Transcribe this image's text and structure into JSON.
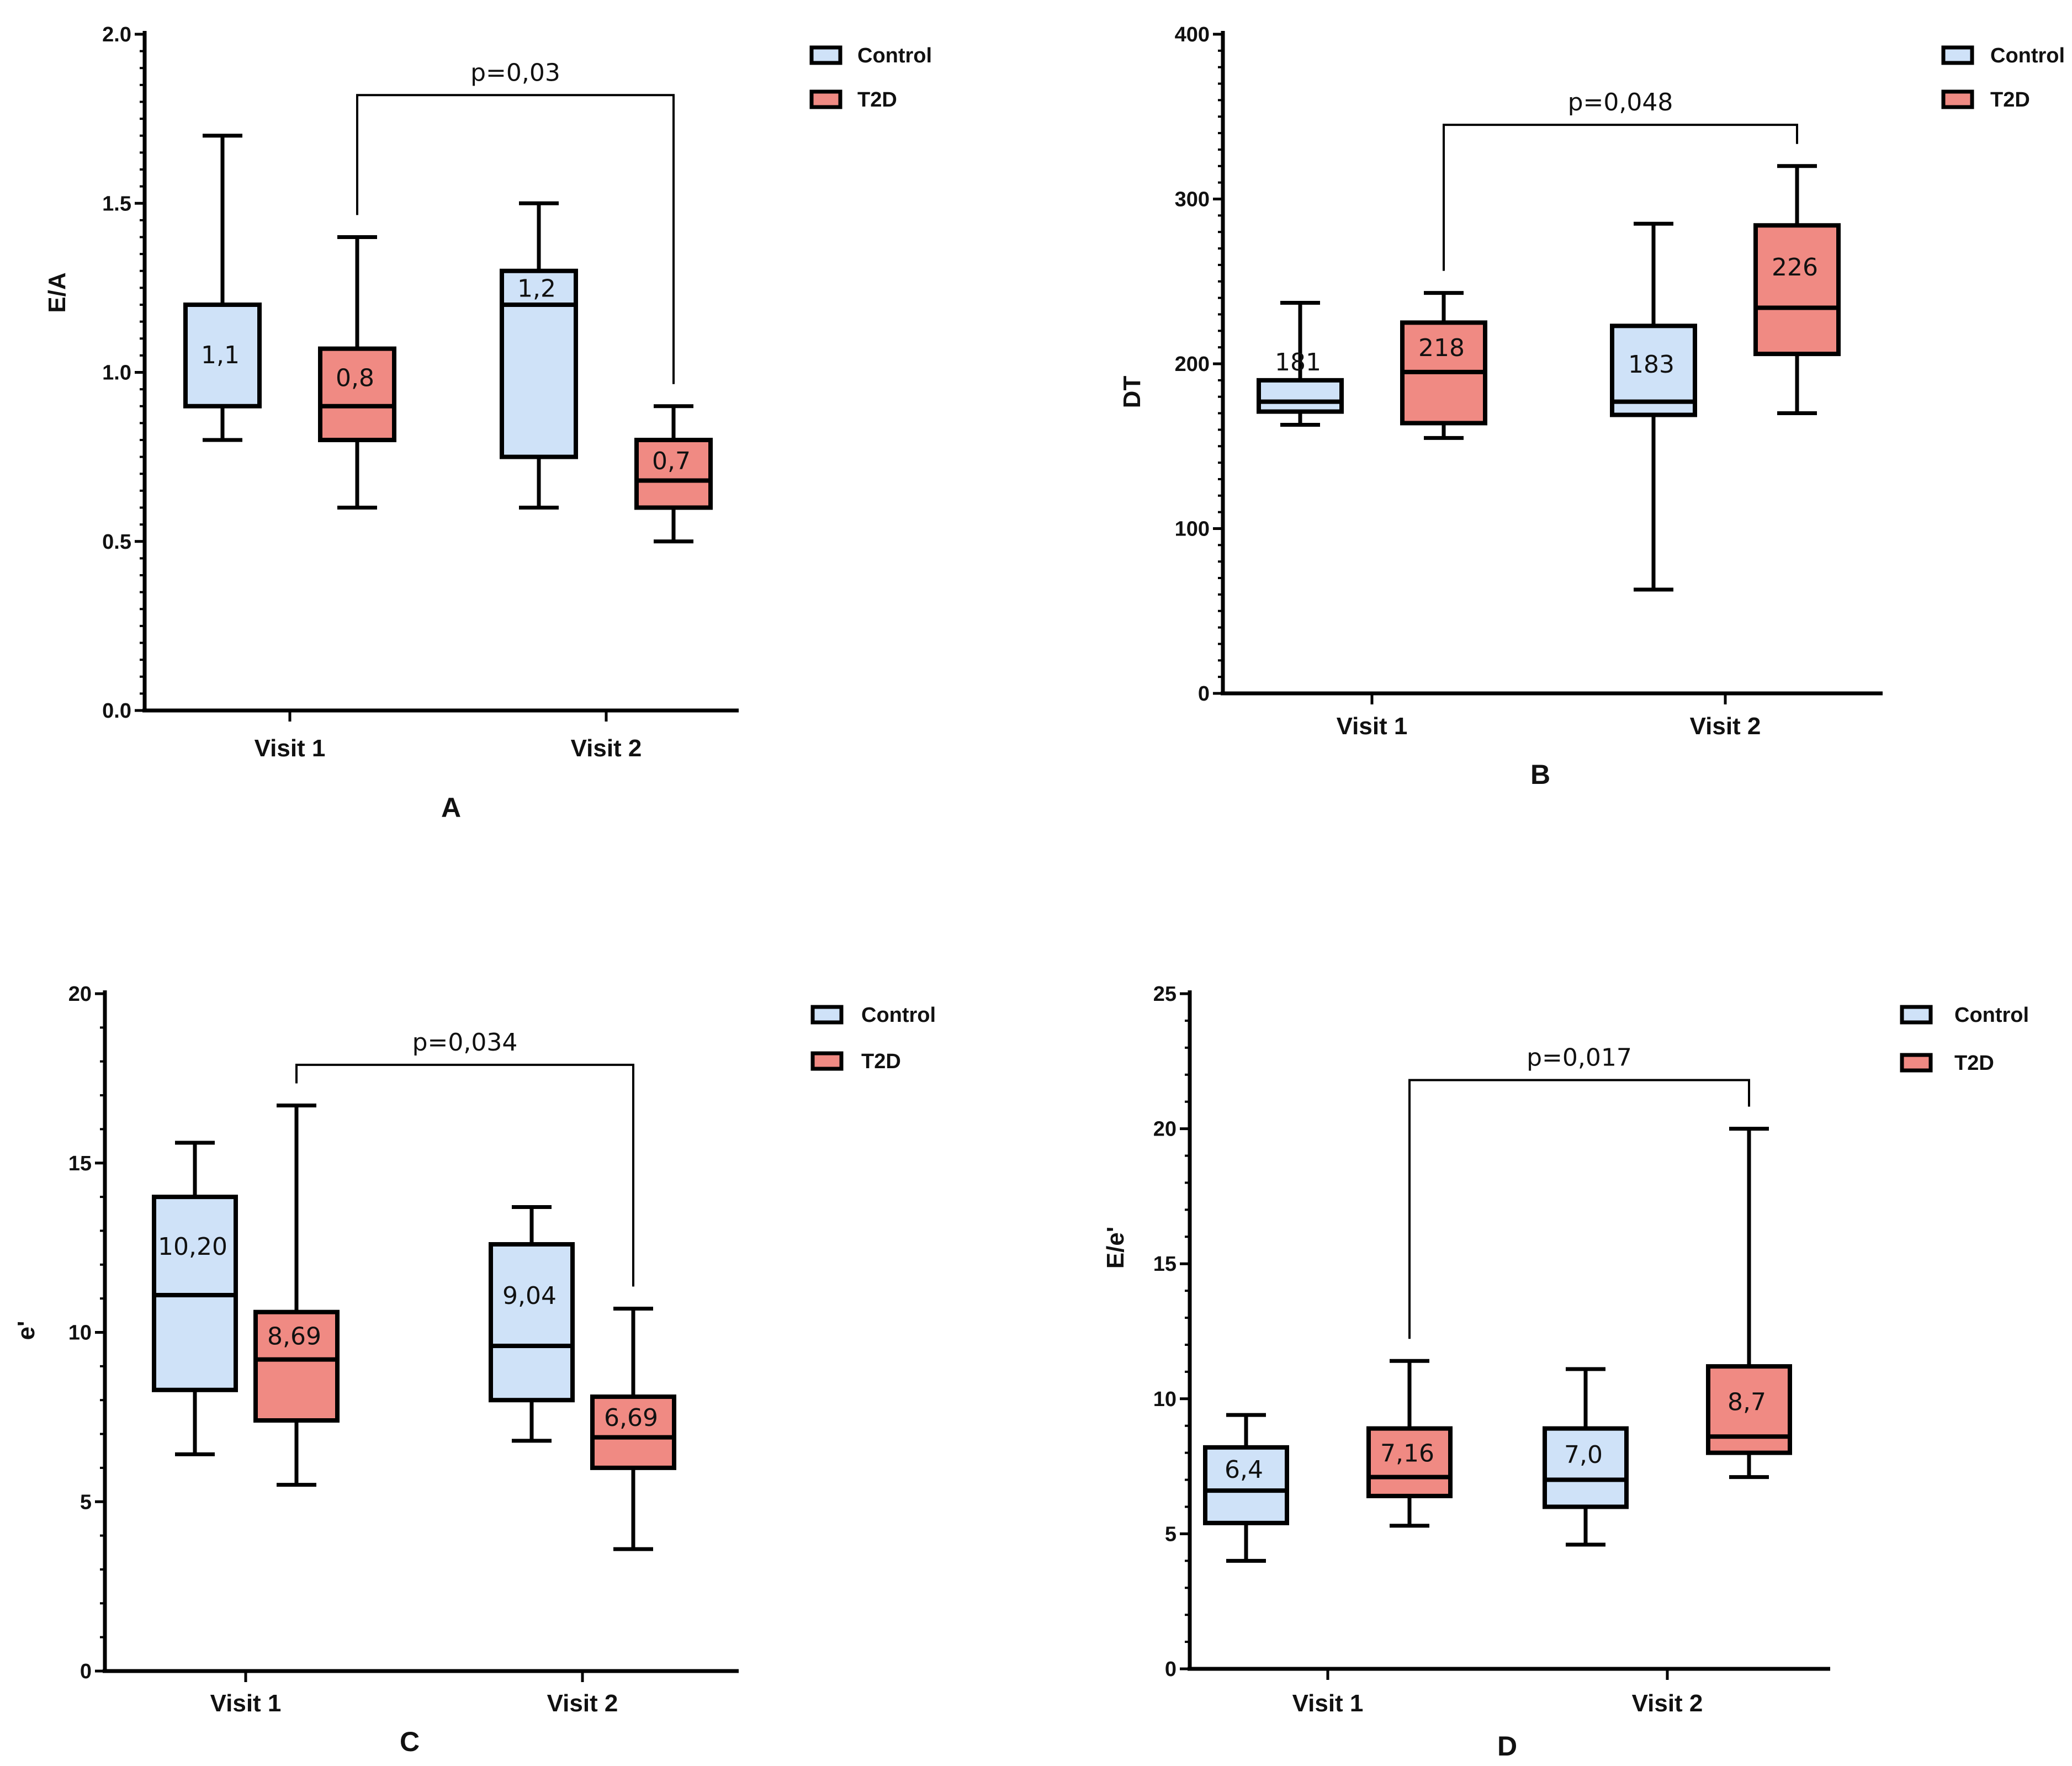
{
  "colors": {
    "control": "#cfe2f8",
    "t2d": "#f08a83",
    "axis": "#000000"
  },
  "legend": {
    "control_label": "Control",
    "t2d_label": "T2D"
  },
  "chart_data": [
    {
      "panel": "A",
      "type": "box",
      "ylabel": "E/A",
      "categories": [
        "Visit 1",
        "Visit 2"
      ],
      "ylim": [
        0,
        2.0
      ],
      "yticks": [
        0.0,
        0.5,
        1.0,
        1.5,
        2.0
      ],
      "ytick_labels": [
        "0.0",
        "0.5",
        "1.0",
        "1.5",
        "2.0"
      ],
      "minor_per_major": 10,
      "series": [
        {
          "name": "Control",
          "boxes": [
            {
              "min": 0.8,
              "q1": 0.9,
              "median": 1.2,
              "q3": 1.2,
              "max": 1.7,
              "label": "1,1"
            },
            {
              "min": 0.6,
              "q1": 0.75,
              "median": 1.2,
              "q3": 1.3,
              "max": 1.5,
              "label": "1,2"
            }
          ]
        },
        {
          "name": "T2D",
          "boxes": [
            {
              "min": 0.6,
              "q1": 0.8,
              "median": 0.9,
              "q3": 1.07,
              "max": 1.4,
              "label": "0,8"
            },
            {
              "min": 0.5,
              "q1": 0.6,
              "median": 0.68,
              "q3": 0.8,
              "max": 0.9,
              "label": "0,7"
            }
          ]
        }
      ],
      "significance": {
        "label": "p=0,03",
        "from": "T2D Visit 1",
        "to": "T2D Visit 2",
        "y": 1.82
      }
    },
    {
      "panel": "B",
      "type": "box",
      "ylabel": "DT",
      "categories": [
        "Visit 1",
        "Visit 2"
      ],
      "ylim": [
        0,
        400
      ],
      "yticks": [
        0,
        100,
        200,
        300,
        400
      ],
      "ytick_labels": [
        "0",
        "100",
        "200",
        "300",
        "400"
      ],
      "minor_per_major": 10,
      "series": [
        {
          "name": "Control",
          "boxes": [
            {
              "min": 163,
              "q1": 171,
              "median": 177,
              "q3": 190,
              "max": 237,
              "label": "181"
            },
            {
              "min": 63,
              "q1": 169,
              "median": 177,
              "q3": 223,
              "max": 285,
              "label": "183"
            }
          ]
        },
        {
          "name": "T2D",
          "boxes": [
            {
              "min": 155,
              "q1": 164,
              "median": 195,
              "q3": 225,
              "max": 243,
              "label": "218"
            },
            {
              "min": 170,
              "q1": 206,
              "median": 234,
              "q3": 284,
              "max": 320,
              "label": "226"
            }
          ]
        }
      ],
      "significance": {
        "label": "p=0,048",
        "from": "T2D Visit 1",
        "to": "T2D Visit 2",
        "y": 345
      }
    },
    {
      "panel": "C",
      "type": "box",
      "ylabel": "e'",
      "categories": [
        "Visit 1",
        "Visit 2"
      ],
      "ylim": [
        0,
        20
      ],
      "yticks": [
        0,
        5,
        10,
        15,
        20
      ],
      "ytick_labels": [
        "0",
        "5",
        "10",
        "15",
        "20"
      ],
      "minor_per_major": 5,
      "series": [
        {
          "name": "Control",
          "boxes": [
            {
              "min": 6.4,
              "q1": 8.3,
              "median": 11.1,
              "q3": 14.0,
              "max": 15.6,
              "label": "10,20"
            },
            {
              "min": 6.8,
              "q1": 8.0,
              "median": 9.6,
              "q3": 12.6,
              "max": 13.7,
              "label": "9,04"
            }
          ]
        },
        {
          "name": "T2D",
          "boxes": [
            {
              "min": 5.5,
              "q1": 7.4,
              "median": 9.2,
              "q3": 10.6,
              "max": 16.7,
              "label": "8,69"
            },
            {
              "min": 3.6,
              "q1": 6.0,
              "median": 6.9,
              "q3": 8.1,
              "max": 10.7,
              "label": "6,69"
            }
          ]
        }
      ],
      "significance": {
        "label": "p=0,034",
        "from": "T2D Visit 1",
        "to": "T2D Visit 2",
        "y": 17.9
      }
    },
    {
      "panel": "D",
      "type": "box",
      "ylabel": "E/e'",
      "categories": [
        "Visit 1",
        "Visit 2"
      ],
      "ylim": [
        0,
        25
      ],
      "yticks": [
        0,
        5,
        10,
        15,
        20,
        25
      ],
      "ytick_labels": [
        "0",
        "5",
        "10",
        "15",
        "20",
        "25"
      ],
      "minor_per_major": 5,
      "series": [
        {
          "name": "Control",
          "boxes": [
            {
              "min": 4.0,
              "q1": 5.4,
              "median": 6.6,
              "q3": 8.2,
              "max": 9.4,
              "label": "6,4"
            },
            {
              "min": 4.6,
              "q1": 6.0,
              "median": 7.0,
              "q3": 8.9,
              "max": 11.1,
              "label": "7,0"
            }
          ]
        },
        {
          "name": "T2D",
          "boxes": [
            {
              "min": 5.3,
              "q1": 6.4,
              "median": 7.1,
              "q3": 8.9,
              "max": 11.4,
              "label": "7,16"
            },
            {
              "min": 7.1,
              "q1": 8.0,
              "median": 8.6,
              "q3": 11.2,
              "max": 20.0,
              "label": "8,7"
            }
          ]
        }
      ],
      "significance": {
        "label": "p=0,017",
        "from": "T2D Visit 1",
        "to": "T2D Visit 2",
        "y": 21.8
      }
    }
  ]
}
